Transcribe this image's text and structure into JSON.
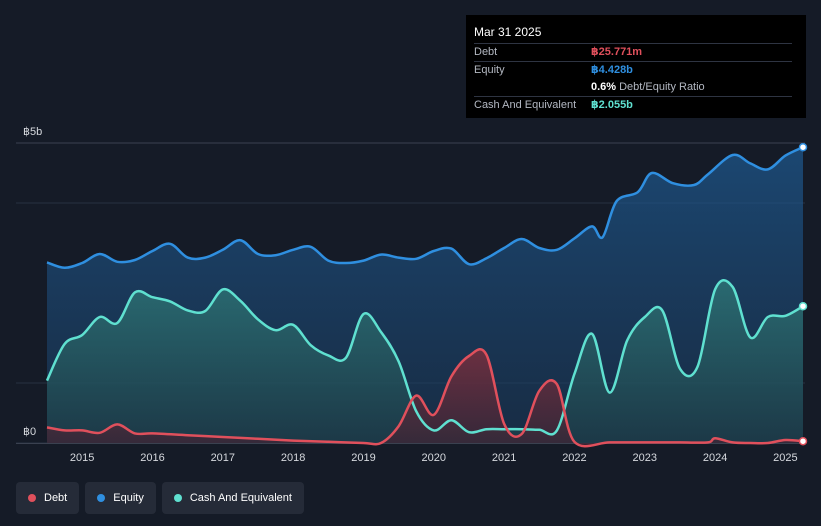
{
  "tooltip": {
    "date": "Mar 31 2025",
    "debt_label": "Debt",
    "debt_value": "฿25.771m",
    "equity_label": "Equity",
    "equity_value": "฿4.428b",
    "ratio_value": "0.6%",
    "ratio_label": "Debt/Equity Ratio",
    "cash_label": "Cash And Equivalent",
    "cash_value": "฿2.055b"
  },
  "legend": {
    "debt": "Debt",
    "equity": "Equity",
    "cash": "Cash And Equivalent"
  },
  "colors": {
    "background": "#151b27",
    "debt": "#e0505c",
    "equity": "#2f8fe0",
    "cash": "#5fe0d0"
  },
  "chart_data": {
    "type": "area",
    "y_unit": "฿ billions",
    "ylim": [
      0,
      5
    ],
    "y_ticks": [
      {
        "value": 5,
        "label": "฿5b"
      },
      {
        "value": 0,
        "label": "฿0"
      }
    ],
    "x_range": [
      2014.5,
      2025.25
    ],
    "x_ticks": [
      "2015",
      "2016",
      "2017",
      "2018",
      "2019",
      "2020",
      "2021",
      "2022",
      "2023",
      "2024",
      "2025"
    ],
    "grid": true,
    "legend_position": "bottom-left",
    "series": [
      {
        "name": "Equity",
        "color": "#2f8fe0",
        "points": [
          [
            2014.5,
            3.01
          ],
          [
            2014.75,
            2.92
          ],
          [
            2015.0,
            3.0
          ],
          [
            2015.25,
            3.15
          ],
          [
            2015.5,
            3.02
          ],
          [
            2015.75,
            3.05
          ],
          [
            2016.0,
            3.2
          ],
          [
            2016.25,
            3.32
          ],
          [
            2016.5,
            3.09
          ],
          [
            2016.75,
            3.09
          ],
          [
            2017.0,
            3.22
          ],
          [
            2017.25,
            3.38
          ],
          [
            2017.5,
            3.15
          ],
          [
            2017.75,
            3.13
          ],
          [
            2018.0,
            3.22
          ],
          [
            2018.25,
            3.27
          ],
          [
            2018.5,
            3.04
          ],
          [
            2018.75,
            3.0
          ],
          [
            2019.0,
            3.04
          ],
          [
            2019.25,
            3.14
          ],
          [
            2019.5,
            3.09
          ],
          [
            2019.75,
            3.07
          ],
          [
            2020.0,
            3.2
          ],
          [
            2020.25,
            3.24
          ],
          [
            2020.5,
            2.98
          ],
          [
            2020.75,
            3.08
          ],
          [
            2021.0,
            3.25
          ],
          [
            2021.25,
            3.4
          ],
          [
            2021.5,
            3.25
          ],
          [
            2021.75,
            3.22
          ],
          [
            2022.0,
            3.41
          ],
          [
            2022.25,
            3.61
          ],
          [
            2022.4,
            3.43
          ],
          [
            2022.6,
            4.03
          ],
          [
            2022.9,
            4.18
          ],
          [
            2023.1,
            4.5
          ],
          [
            2023.4,
            4.33
          ],
          [
            2023.7,
            4.3
          ],
          [
            2023.9,
            4.48
          ],
          [
            2024.25,
            4.8
          ],
          [
            2024.5,
            4.66
          ],
          [
            2024.75,
            4.56
          ],
          [
            2025.0,
            4.79
          ],
          [
            2025.25,
            4.93
          ]
        ]
      },
      {
        "name": "Cash And Equivalent",
        "color": "#5fe0d0",
        "points": [
          [
            2014.5,
            1.04
          ],
          [
            2014.75,
            1.65
          ],
          [
            2015.0,
            1.8
          ],
          [
            2015.25,
            2.1
          ],
          [
            2015.5,
            2.0
          ],
          [
            2015.75,
            2.51
          ],
          [
            2016.0,
            2.43
          ],
          [
            2016.25,
            2.36
          ],
          [
            2016.5,
            2.21
          ],
          [
            2016.75,
            2.2
          ],
          [
            2017.0,
            2.56
          ],
          [
            2017.25,
            2.37
          ],
          [
            2017.5,
            2.06
          ],
          [
            2017.75,
            1.88
          ],
          [
            2018.0,
            1.97
          ],
          [
            2018.25,
            1.63
          ],
          [
            2018.5,
            1.46
          ],
          [
            2018.75,
            1.42
          ],
          [
            2019.0,
            2.15
          ],
          [
            2019.25,
            1.85
          ],
          [
            2019.5,
            1.36
          ],
          [
            2019.75,
            0.53
          ],
          [
            2020.0,
            0.21
          ],
          [
            2020.25,
            0.38
          ],
          [
            2020.5,
            0.18
          ],
          [
            2020.75,
            0.23
          ],
          [
            2021.0,
            0.23
          ],
          [
            2021.25,
            0.23
          ],
          [
            2021.5,
            0.22
          ],
          [
            2021.75,
            0.21
          ],
          [
            2022.0,
            1.15
          ],
          [
            2022.25,
            1.82
          ],
          [
            2022.5,
            0.84
          ],
          [
            2022.75,
            1.71
          ],
          [
            2023.0,
            2.1
          ],
          [
            2023.25,
            2.21
          ],
          [
            2023.5,
            1.24
          ],
          [
            2023.75,
            1.27
          ],
          [
            2024.0,
            2.56
          ],
          [
            2024.25,
            2.6
          ],
          [
            2024.5,
            1.76
          ],
          [
            2024.75,
            2.1
          ],
          [
            2025.0,
            2.12
          ],
          [
            2025.25,
            2.28
          ]
        ]
      },
      {
        "name": "Debt",
        "color": "#e0505c",
        "points": [
          [
            2014.5,
            0.26
          ],
          [
            2014.75,
            0.21
          ],
          [
            2015.0,
            0.21
          ],
          [
            2015.25,
            0.17
          ],
          [
            2015.5,
            0.31
          ],
          [
            2015.75,
            0.16
          ],
          [
            2016.0,
            0.16
          ],
          [
            2016.5,
            0.13
          ],
          [
            2017.0,
            0.1
          ],
          [
            2017.5,
            0.07
          ],
          [
            2018.0,
            0.04
          ],
          [
            2018.5,
            0.02
          ],
          [
            2019.0,
            0.0
          ],
          [
            2019.25,
            0.0
          ],
          [
            2019.5,
            0.28
          ],
          [
            2019.75,
            0.79
          ],
          [
            2020.0,
            0.47
          ],
          [
            2020.25,
            1.11
          ],
          [
            2020.5,
            1.45
          ],
          [
            2020.75,
            1.47
          ],
          [
            2021.0,
            0.32
          ],
          [
            2021.25,
            0.15
          ],
          [
            2021.5,
            0.87
          ],
          [
            2021.75,
            0.98
          ],
          [
            2022.0,
            0.02
          ],
          [
            2022.5,
            0.01
          ],
          [
            2023.0,
            0.01
          ],
          [
            2023.5,
            0.01
          ],
          [
            2023.9,
            0.01
          ],
          [
            2024.0,
            0.08
          ],
          [
            2024.25,
            0.01
          ],
          [
            2024.5,
            0.0
          ],
          [
            2024.75,
            0.0
          ],
          [
            2025.0,
            0.05
          ],
          [
            2025.25,
            0.03
          ]
        ]
      }
    ]
  }
}
